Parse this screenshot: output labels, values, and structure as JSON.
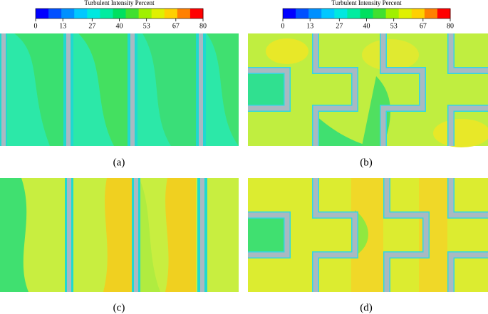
{
  "colorbars": [
    {
      "title": "Turbulent Intensity Percent",
      "lim": [
        0,
        80
      ],
      "ticks": [
        0,
        13,
        27,
        40,
        53,
        67,
        80
      ],
      "colors": [
        "#0000ff",
        "#0050ff",
        "#0090ff",
        "#00c8ff",
        "#00e8e0",
        "#00eca0",
        "#00e060",
        "#40e030",
        "#a0f000",
        "#e0f000",
        "#ffd000",
        "#ff8000",
        "#ff0000"
      ]
    },
    {
      "title": "Turbulent Intensity Percent",
      "lim": [
        0,
        80
      ],
      "ticks": [
        0,
        13,
        27,
        40,
        53,
        67,
        80
      ],
      "colors": [
        "#0000ff",
        "#0050ff",
        "#0090ff",
        "#00c8ff",
        "#00e8e0",
        "#00eca0",
        "#00e060",
        "#40e030",
        "#a0f000",
        "#e0f000",
        "#ffd000",
        "#ff8000",
        "#ff0000"
      ]
    }
  ],
  "panels": [
    {
      "label": "(a)"
    },
    {
      "label": "(b)"
    },
    {
      "label": "(c)"
    },
    {
      "label": "(d)"
    }
  ]
}
